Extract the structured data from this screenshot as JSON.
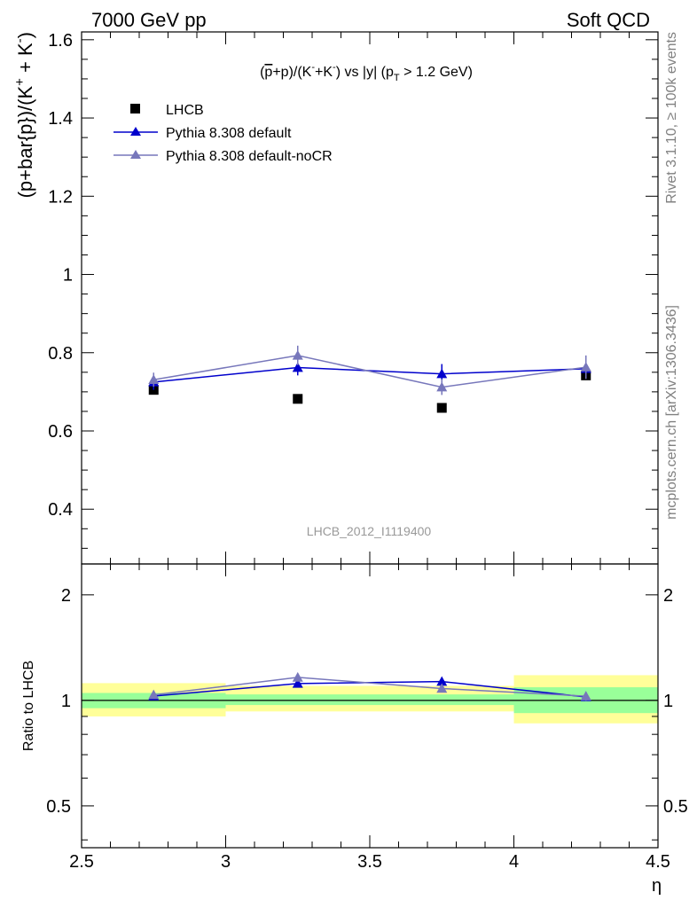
{
  "header": {
    "left": "7000 GeV pp",
    "right": "Soft QCD"
  },
  "side": {
    "rivet": "Rivet 3.1.10, ≥ 100k events",
    "mcplots": "mcplots.cern.ch [arXiv:1306.3436]"
  },
  "chart_data": [
    {
      "type": "scatter",
      "title": "(p̄+p)/(K⁻+K⁻) vs |y| (p_T > 1.2 GeV)",
      "title_parts": {
        "pbar": "p",
        "mid": "+p)/(K",
        "sup1": "-",
        "mid2": "+K",
        "sup2": "-",
        "end": ") vs |y| (p",
        "sub": "T",
        "tail": " > 1.2 GeV)"
      },
      "ylabel": "(p+bar{p})/(K⁺ + K⁻)",
      "ylabel_parts": {
        "main": "(p+bar{p})/(K",
        "sup1": "+",
        "mid": " + K",
        "sup2": "-",
        "end": ")"
      },
      "watermark": "LHCB_2012_I1119400",
      "xlim": [
        2.5,
        4.5
      ],
      "ylim": [
        0.26,
        1.62
      ],
      "yticks": [
        0.4,
        0.6,
        0.8,
        1,
        1.2,
        1.4,
        1.6
      ],
      "ytick_labels": [
        "0.4",
        "0.6",
        "0.8",
        "1",
        "1.2",
        "1.4",
        "1.6"
      ],
      "x": [
        2.75,
        3.25,
        3.75,
        4.25
      ],
      "legend_position": "top-left",
      "series": [
        {
          "name": "LHCB",
          "marker": "square",
          "color": "#000000",
          "values": [
            0.705,
            0.682,
            0.659,
            0.742
          ],
          "errors": [
            0.01,
            0.005,
            0.005,
            0.01
          ]
        },
        {
          "name": "Pythia 8.308 default",
          "marker": "triangle",
          "color": "#0000cc",
          "values": [
            0.725,
            0.762,
            0.746,
            0.759
          ],
          "errors": [
            0.02,
            0.02,
            0.025,
            0.025
          ]
        },
        {
          "name": "Pythia 8.308 default-noCR",
          "marker": "triangle",
          "color": "#7777bb",
          "values": [
            0.731,
            0.793,
            0.712,
            0.763
          ],
          "errors": [
            0.018,
            0.025,
            0.02,
            0.03
          ]
        }
      ]
    },
    {
      "type": "scatter",
      "ylabel": "Ratio to LHCB",
      "xlabel": "η",
      "xlim": [
        2.5,
        4.5
      ],
      "ylim": [
        0.38,
        2.45
      ],
      "log_y": true,
      "yticks": [
        0.5,
        1,
        2
      ],
      "ytick_labels": [
        "0.5",
        "1",
        "2"
      ],
      "xticks": [
        2.5,
        3,
        3.5,
        4,
        4.5
      ],
      "xtick_labels": [
        "2.5",
        "3",
        "3.5",
        "4",
        "4.5"
      ],
      "x": [
        2.75,
        3.25,
        3.75,
        4.25
      ],
      "bands": {
        "bins": [
          [
            2.5,
            3
          ],
          [
            3,
            3.5
          ],
          [
            3.5,
            4
          ],
          [
            4,
            4.5
          ]
        ],
        "green": [
          [
            0.95,
            1.05
          ],
          [
            0.97,
            1.04
          ],
          [
            0.97,
            1.04
          ],
          [
            0.92,
            1.09
          ]
        ],
        "yellow": [
          [
            0.9,
            1.12
          ],
          [
            0.93,
            1.1
          ],
          [
            0.93,
            1.1
          ],
          [
            0.86,
            1.18
          ]
        ],
        "green_color": "#99ff99",
        "yellow_color": "#ffff99"
      },
      "series": [
        {
          "name": "Pythia 8.308 default",
          "color": "#0000cc",
          "values": [
            1.029,
            1.117,
            1.132,
            1.023
          ],
          "errors": [
            0.02,
            0.02,
            0.025,
            0.025
          ]
        },
        {
          "name": "Pythia 8.308 default-noCR",
          "color": "#7777bb",
          "values": [
            1.037,
            1.163,
            1.081,
            1.028
          ],
          "errors": [
            0.018,
            0.025,
            0.02,
            0.03
          ]
        }
      ]
    }
  ]
}
